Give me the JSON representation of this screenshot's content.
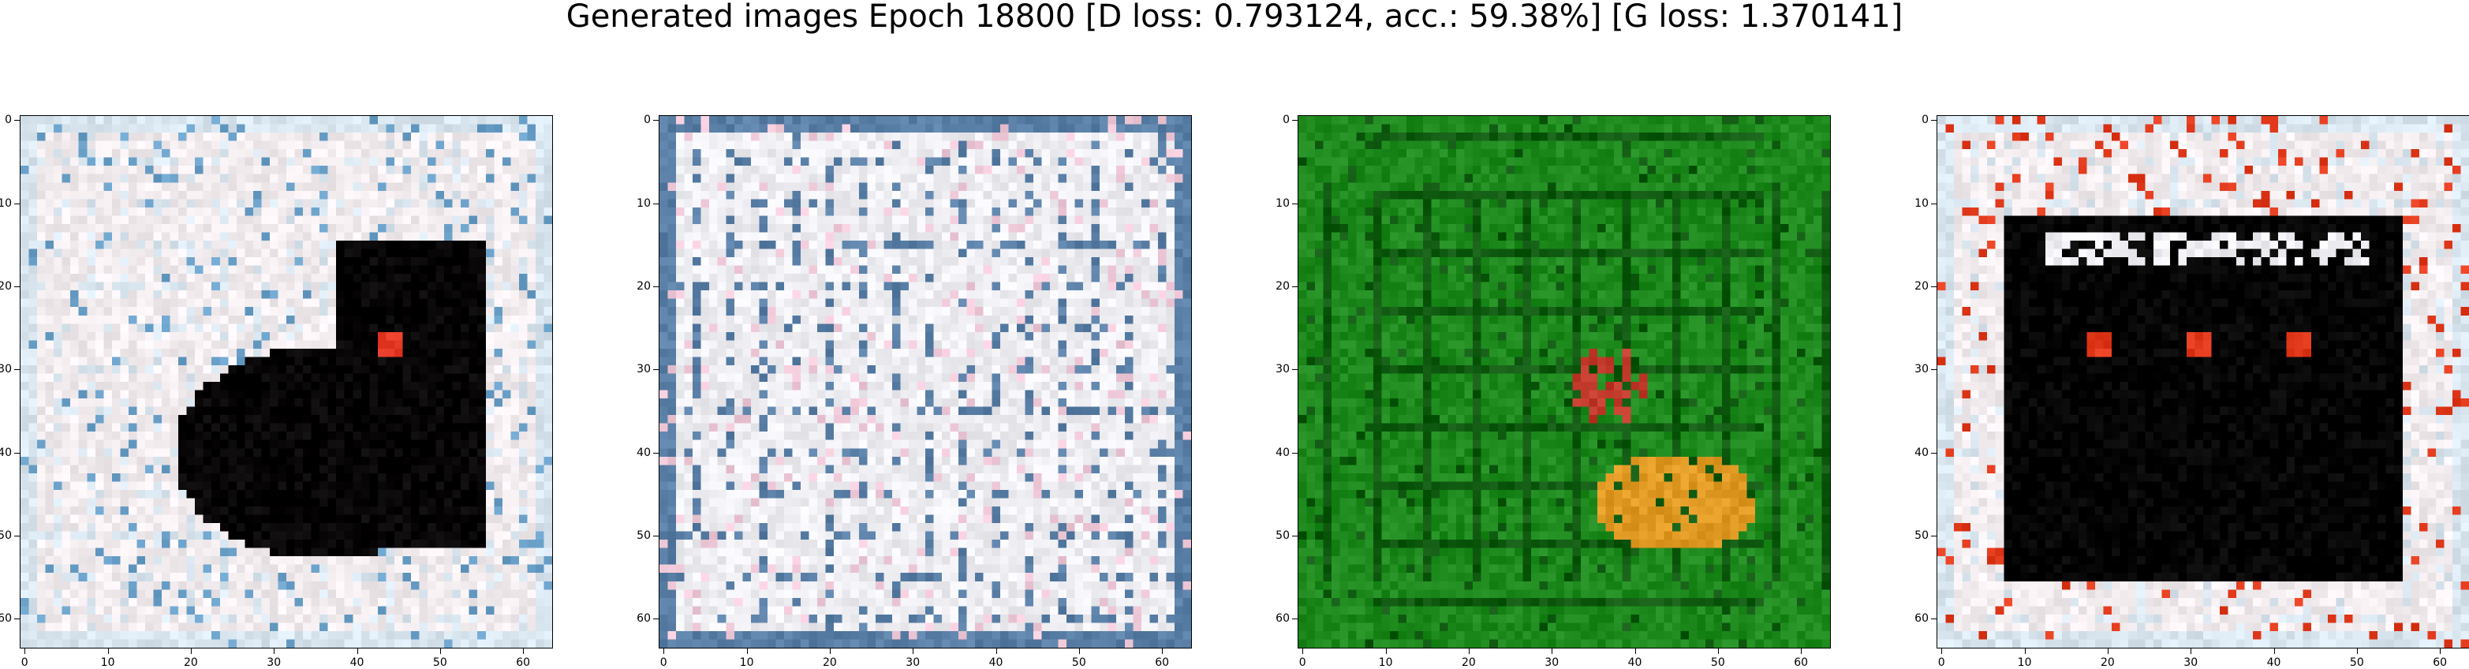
{
  "title": "Generated images Epoch 18800 [D loss: 0.793124, acc.: 59.38%] [G loss: 1.370141]",
  "axes": {
    "xticks": [
      "0",
      "10",
      "20",
      "30",
      "40",
      "50",
      "60"
    ],
    "yticks": [
      "0",
      "10",
      "20",
      "30",
      "40",
      "50",
      "60"
    ]
  },
  "panels": [
    {
      "name": "sample-1",
      "scene": "dark-blob-on-light-noise",
      "palette": [
        "#f2ecef",
        "#050303",
        "#d9e6f0",
        "#6aa0c8"
      ]
    },
    {
      "name": "sample-2",
      "scene": "light-grid-noise",
      "palette": [
        "#eeeef3",
        "#c9d7e6",
        "#5a7fa6",
        "#f0c9d8"
      ]
    },
    {
      "name": "sample-3",
      "scene": "green-field-orange-blob",
      "palette": [
        "#1e8a1e",
        "#0f5a10",
        "#e09a24",
        "#c0392b"
      ]
    },
    {
      "name": "sample-4",
      "scene": "dark-rect-with-spots",
      "palette": [
        "#f2ecef",
        "#030202",
        "#d9e6f0",
        "#e23a1c"
      ]
    }
  ]
}
